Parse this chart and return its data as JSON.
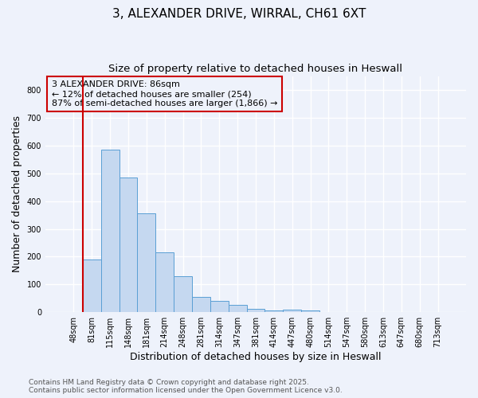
{
  "title_line1": "3, ALEXANDER DRIVE, WIRRAL, CH61 6XT",
  "title_line2": "Size of property relative to detached houses in Heswall",
  "xlabel": "Distribution of detached houses by size in Heswall",
  "ylabel": "Number of detached properties",
  "bin_labels": [
    "48sqm",
    "81sqm",
    "115sqm",
    "148sqm",
    "181sqm",
    "214sqm",
    "248sqm",
    "281sqm",
    "314sqm",
    "347sqm",
    "381sqm",
    "414sqm",
    "447sqm",
    "480sqm",
    "514sqm",
    "547sqm",
    "580sqm",
    "613sqm",
    "647sqm",
    "680sqm",
    "713sqm"
  ],
  "bar_heights": [
    0,
    190,
    585,
    485,
    355,
    215,
    130,
    55,
    40,
    25,
    13,
    5,
    10,
    5,
    0,
    0,
    0,
    0,
    0,
    0,
    0
  ],
  "bar_color": "#c5d8f0",
  "bar_edgecolor": "#5a9fd4",
  "background_color": "#eef2fb",
  "grid_color": "#ffffff",
  "redline_color": "#cc0000",
  "annotation_text": "3 ALEXANDER DRIVE: 86sqm\n← 12% of detached houses are smaller (254)\n87% of semi-detached houses are larger (1,866) →",
  "annotation_box_edgecolor": "#cc0000",
  "ylim": [
    0,
    850
  ],
  "yticks": [
    0,
    100,
    200,
    300,
    400,
    500,
    600,
    700,
    800
  ],
  "footnote_line1": "Contains HM Land Registry data © Crown copyright and database right 2025.",
  "footnote_line2": "Contains public sector information licensed under the Open Government Licence v3.0.",
  "title_fontsize": 11,
  "subtitle_fontsize": 9.5,
  "tick_fontsize": 7,
  "axis_label_fontsize": 9,
  "footnote_fontsize": 6.5
}
